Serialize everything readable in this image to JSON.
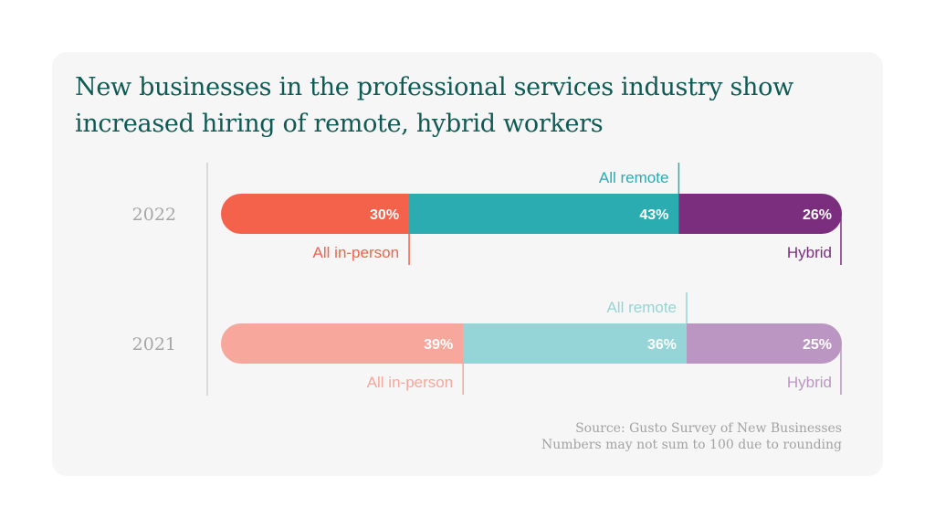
{
  "title": "New businesses in the professional services industry show increased hiring of remote, hybrid workers",
  "source": "Source: Gusto Survey of New Businesses",
  "note": "Numbers may not sum to 100 due to rounding",
  "chart_data": {
    "type": "bar",
    "orientation": "horizontal",
    "stacked": true,
    "categories": [
      "2022",
      "2021"
    ],
    "series": [
      {
        "name": "All in-person",
        "values": [
          30,
          39
        ],
        "labels": [
          "30%",
          "39%"
        ]
      },
      {
        "name": "All remote",
        "values": [
          43,
          36
        ],
        "labels": [
          "43%",
          "36%"
        ]
      },
      {
        "name": "Hybrid",
        "values": [
          26,
          25
        ],
        "labels": [
          "26%",
          "25%"
        ]
      }
    ],
    "colors": {
      "2022": [
        "#f5624c",
        "#2aacb0",
        "#7b2d7e"
      ],
      "2021": [
        "#f7a79b",
        "#95d5d7",
        "#bc96c3"
      ]
    },
    "axis_line_color": "#bdbdbd",
    "legend": "inline"
  }
}
